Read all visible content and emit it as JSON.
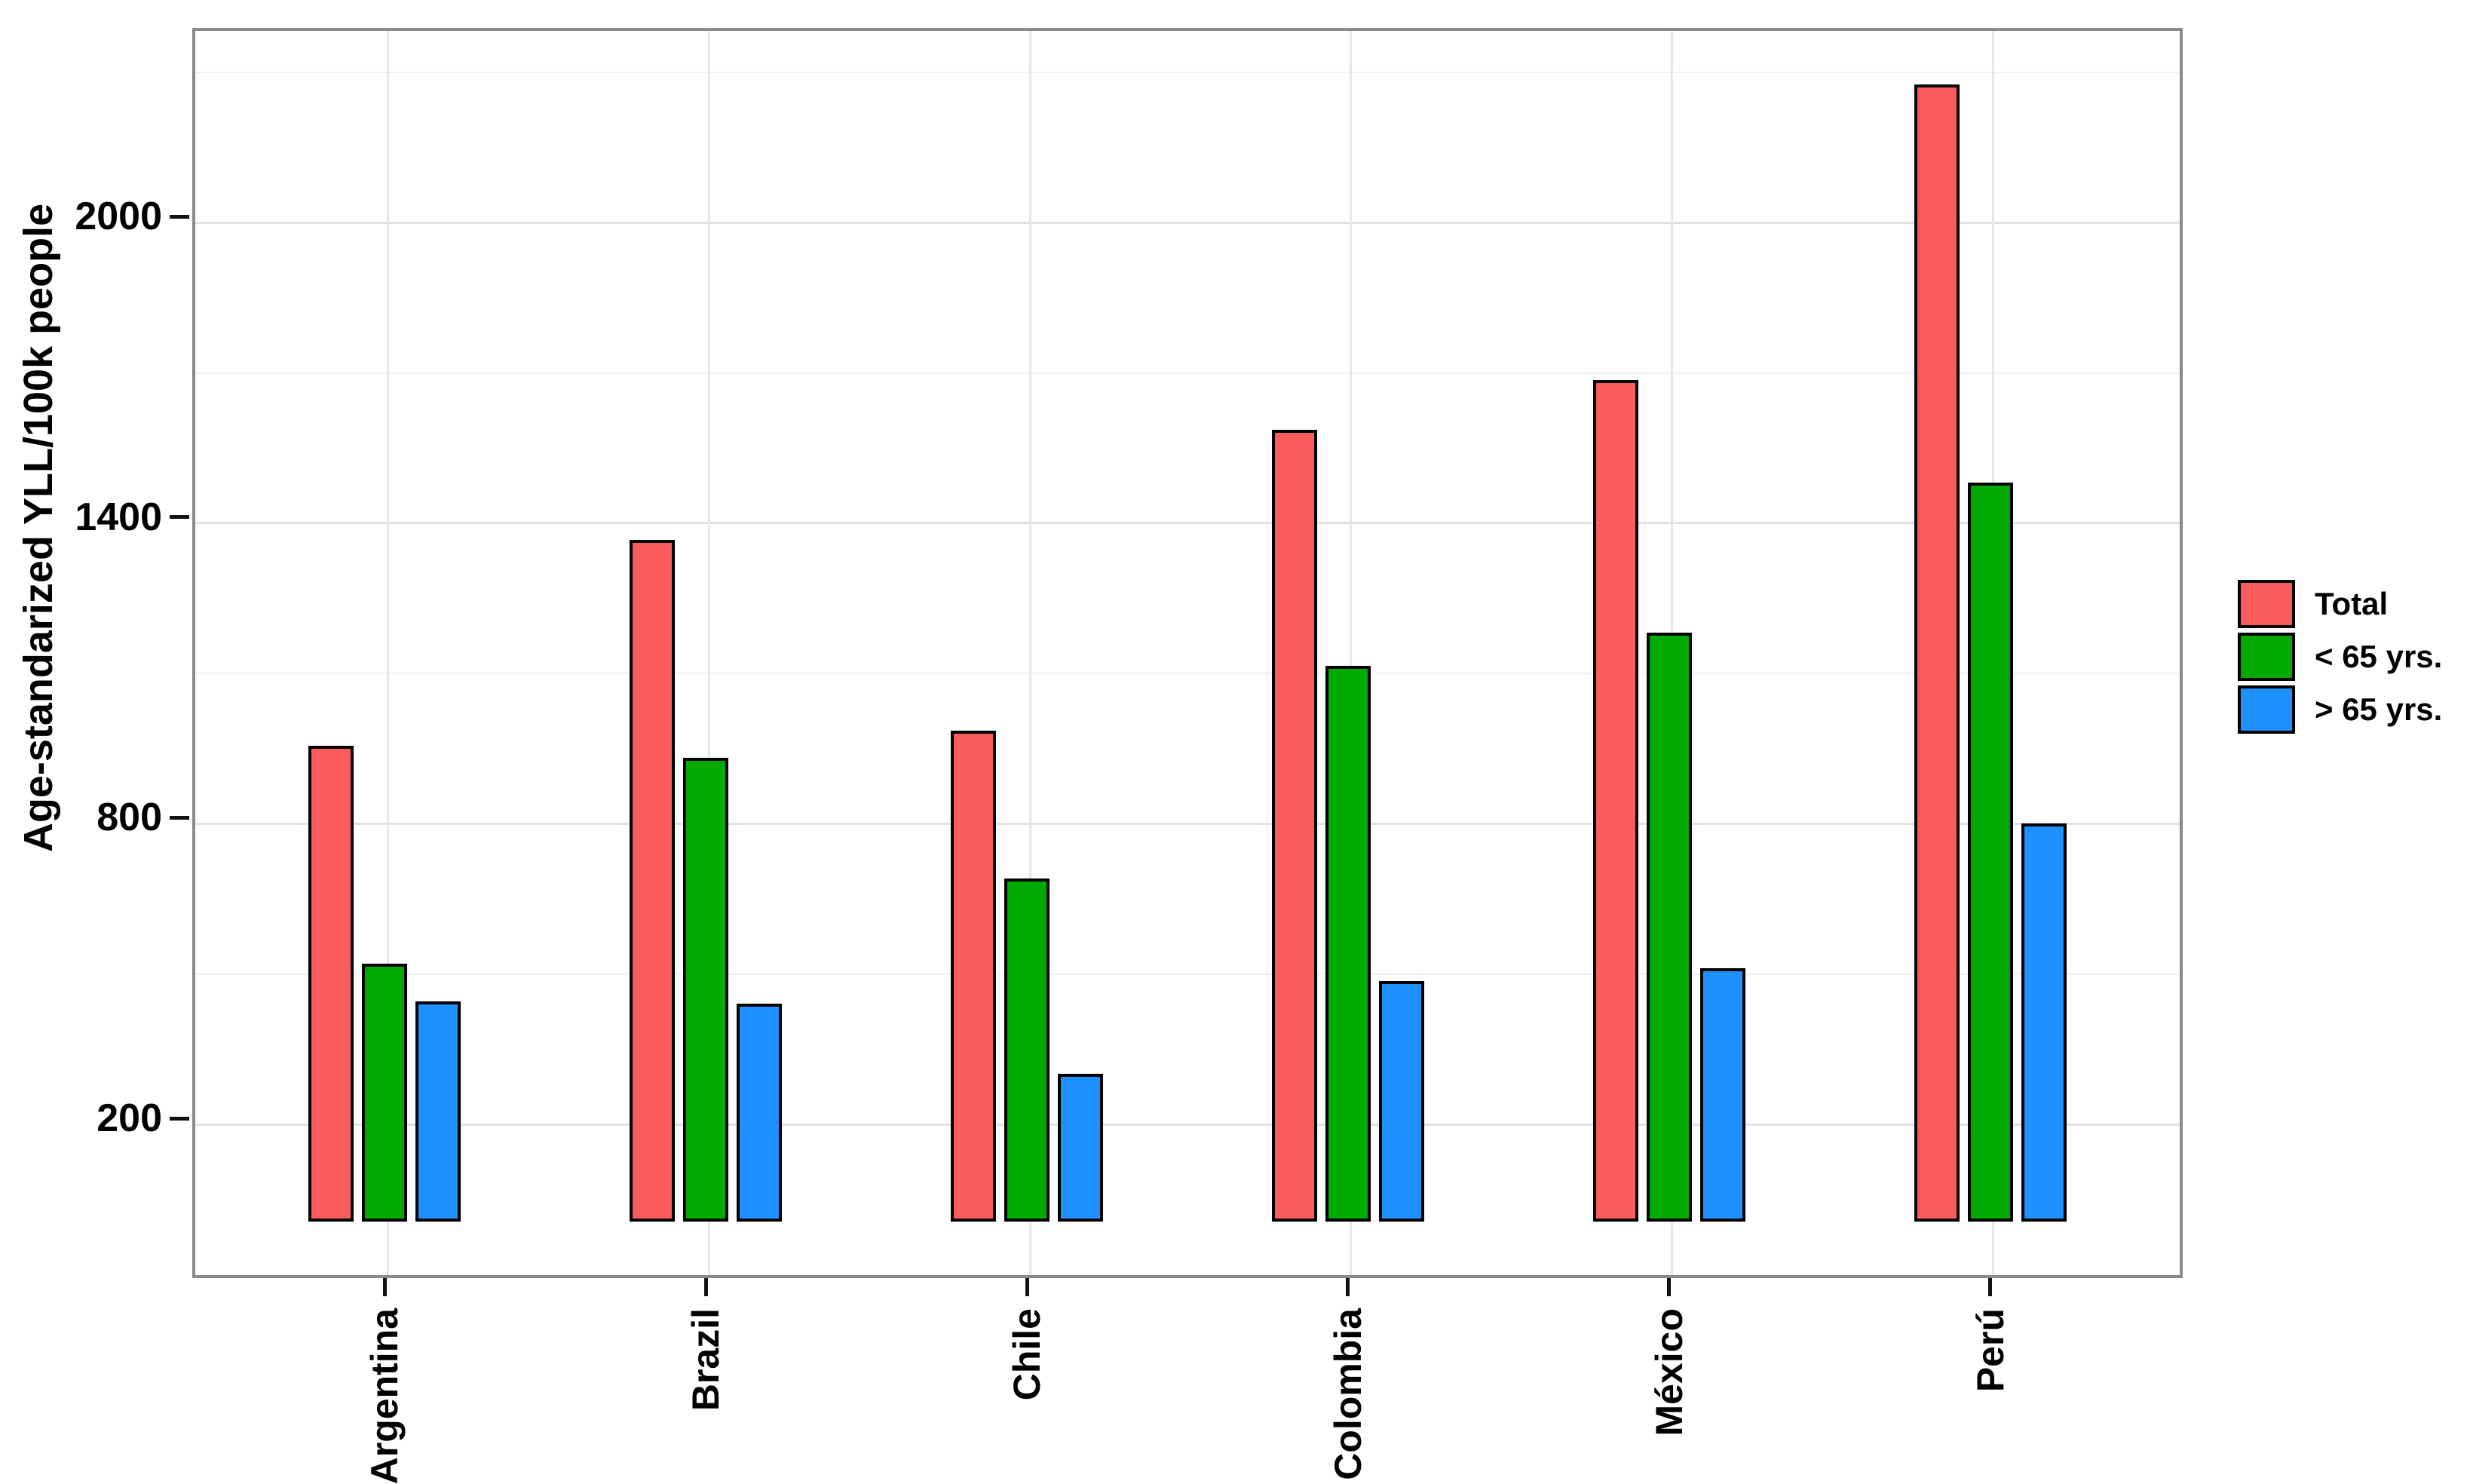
{
  "chart_data": {
    "type": "bar",
    "title": "",
    "xlabel": "",
    "ylabel": "Age-standarized YLL/100k people",
    "categories": [
      "Argentina",
      "Brazil",
      "Chile",
      "Colombia",
      "México",
      "Perú"
    ],
    "series": [
      {
        "name": "Total",
        "color": "#fa5c5c",
        "values": [
          950,
          1360,
          980,
          1580,
          1680,
          2270
        ]
      },
      {
        "name": "< 65 yrs.",
        "color": "#00aa00",
        "values": [
          515,
          925,
          685,
          1110,
          1175,
          1475
        ]
      },
      {
        "name": "> 65 yrs.",
        "color": "#1e90ff",
        "values": [
          440,
          435,
          295,
          480,
          505,
          795
        ]
      }
    ],
    "y_axis": {
      "major_ticks": [
        200,
        800,
        1400,
        2000
      ],
      "minor_gridlines": [
        500,
        1100,
        1700,
        2300
      ],
      "ylim": [
        -110,
        2360
      ]
    },
    "grid": true,
    "legend_position": "right",
    "colors": {
      "bar_border": "#000000",
      "panel_border": "#8a8a8a",
      "major_grid": "#e2e2e2",
      "minor_grid": "#f0f0f0"
    }
  }
}
